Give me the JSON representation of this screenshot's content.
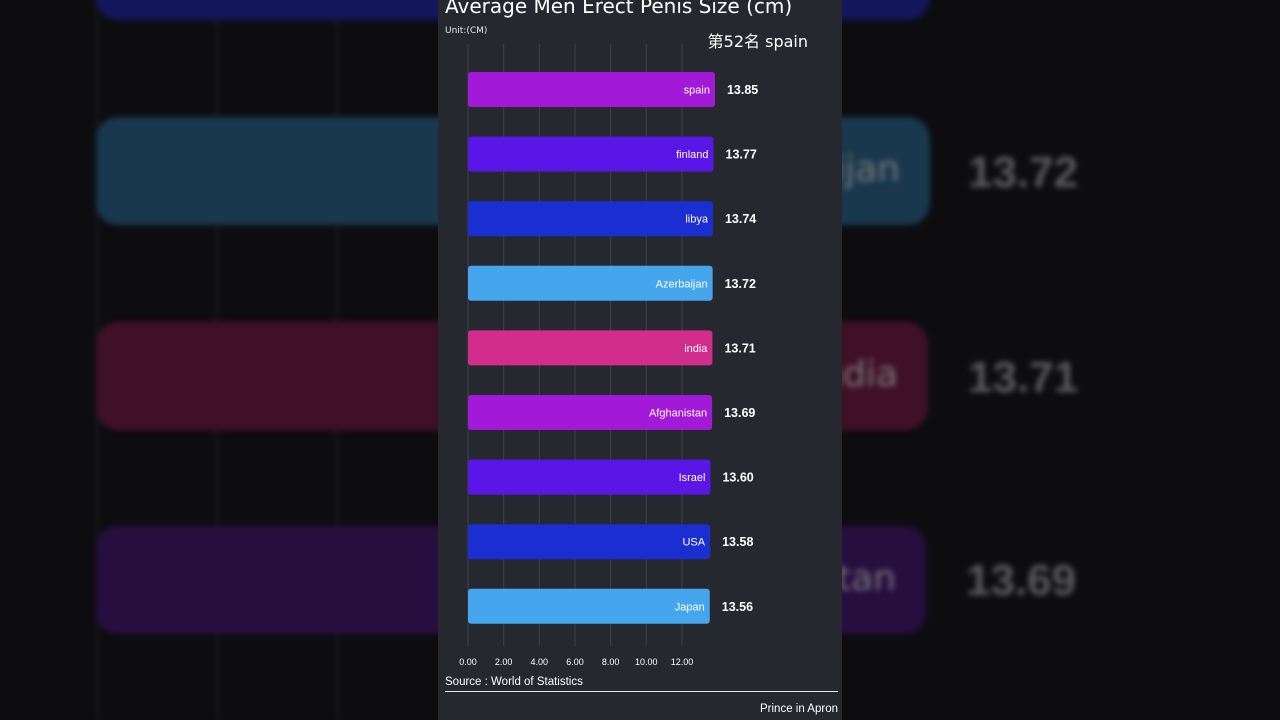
{
  "background": {
    "labels": [
      "ijan",
      "ndia",
      "stan"
    ],
    "values": [
      "13.72",
      "13.71",
      "13.69"
    ]
  },
  "header": {
    "title": "Average Men Erect Penis Size (cm)",
    "unit": "Unit:(CM)",
    "rank": "第52名 spain"
  },
  "chart_data": {
    "type": "bar",
    "orientation": "horizontal",
    "title": "Average Men Erect Penis Size (cm)",
    "unit": "Unit:(CM)",
    "categories": [
      "spain",
      "finland",
      "libya",
      "Azerbaijan",
      "india",
      "Afghanistan",
      "Israel",
      "USA",
      "Japan"
    ],
    "values": [
      13.85,
      13.77,
      13.74,
      13.72,
      13.71,
      13.69,
      13.6,
      13.58,
      13.56
    ],
    "value_labels": [
      "13.85",
      "13.77",
      "13.74",
      "13.72",
      "13.71",
      "13.69",
      "13.60",
      "13.58",
      "13.56"
    ],
    "colors": [
      "#a21ad8",
      "#5a16e6",
      "#1a2ed2",
      "#45a6ee",
      "#d22c8c",
      "#a21ad8",
      "#5a16e6",
      "#1a2ed2",
      "#45a6ee"
    ],
    "xticks": [
      0,
      2,
      4,
      6,
      8,
      10,
      12
    ],
    "xtick_labels": [
      "0.00",
      "2.00",
      "4.00",
      "6.00",
      "8.00",
      "10.00",
      "12.00"
    ],
    "xlim": [
      0,
      12.9
    ],
    "grid": true
  },
  "footer": {
    "source": "Source : World of Statistics",
    "credit": "Prince in Apron"
  }
}
